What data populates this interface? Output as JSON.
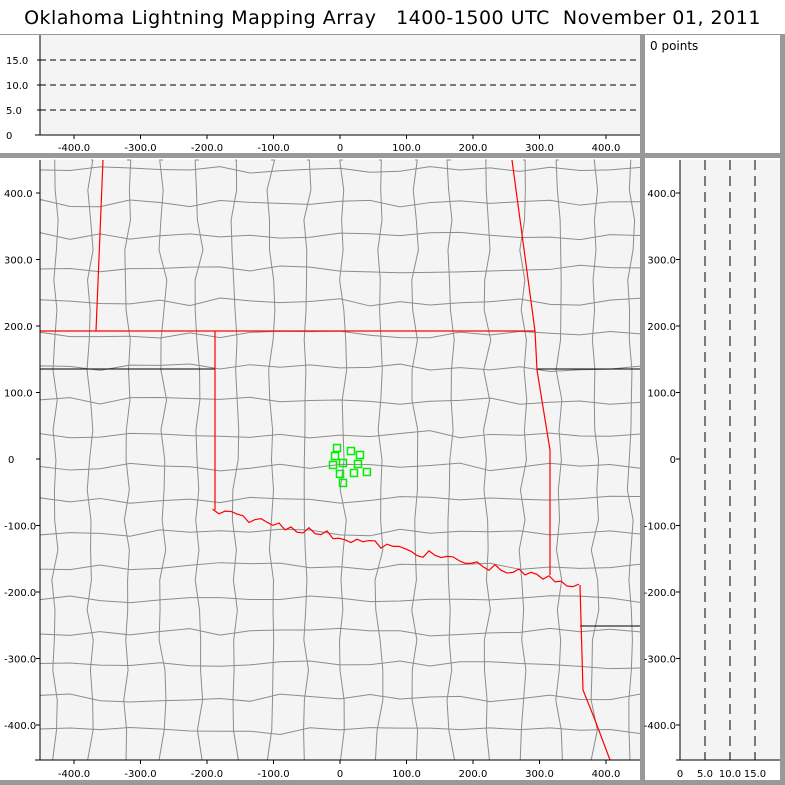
{
  "title": "Oklahoma Lightning Mapping Array   1400-1500 UTC  November 01, 2011",
  "info_panel": {
    "point_count_label": "0 points"
  },
  "colors": {
    "state_border": "#ff0000",
    "county_border": "#8c8c8c",
    "station": "#00ee00",
    "plot_bg": "#f4f4f4",
    "frame": "#999999"
  },
  "icons": {
    "station_marker": "green-square"
  },
  "chart_data": [
    {
      "name": "altitude-vs-east-west",
      "type": "scatter",
      "x_range": [
        -450,
        450
      ],
      "y_range": [
        0,
        19.5
      ],
      "x_ticks": [
        "-400.0",
        "-300.0",
        "-200.0",
        "-100.0",
        "0",
        "100.0",
        "200.0",
        "300.0",
        "400.0"
      ],
      "y_ticks": [
        "0",
        "5.0",
        "10.0",
        "15.0"
      ],
      "dashed_gridlines_y": [
        5,
        10,
        15
      ],
      "points": []
    },
    {
      "name": "plan-view-map",
      "type": "scatter",
      "x_range": [
        -452,
        450
      ],
      "y_range": [
        -452,
        450
      ],
      "x_ticks": [
        "-400.0",
        "-300.0",
        "-200.0",
        "-100.0",
        "0",
        "100.0",
        "200.0",
        "300.0",
        "400.0"
      ],
      "y_ticks": [
        "-400.0",
        "-300.0",
        "-200.0",
        "-100.0",
        "0",
        "100.0",
        "200.0",
        "300.0",
        "400.0"
      ],
      "stations": [
        [
          -4.5,
          16.5
        ],
        [
          16.5,
          12
        ],
        [
          30,
          6
        ],
        [
          -7.5,
          4.5
        ],
        [
          4.5,
          -6
        ],
        [
          -10.5,
          -9
        ],
        [
          27,
          -7.5
        ],
        [
          0,
          -22.5
        ],
        [
          21,
          -21
        ],
        [
          40.5,
          -19.5
        ],
        [
          4.5,
          -36
        ]
      ]
    },
    {
      "name": "north-south-vs-altitude",
      "type": "scatter",
      "x_range": [
        0,
        20
      ],
      "y_range": [
        -452,
        450
      ],
      "x_ticks": [
        "0",
        "5.0",
        "10.0",
        "15.0"
      ],
      "dashed_gridlines_x": [
        5,
        10,
        15
      ],
      "points": []
    }
  ]
}
